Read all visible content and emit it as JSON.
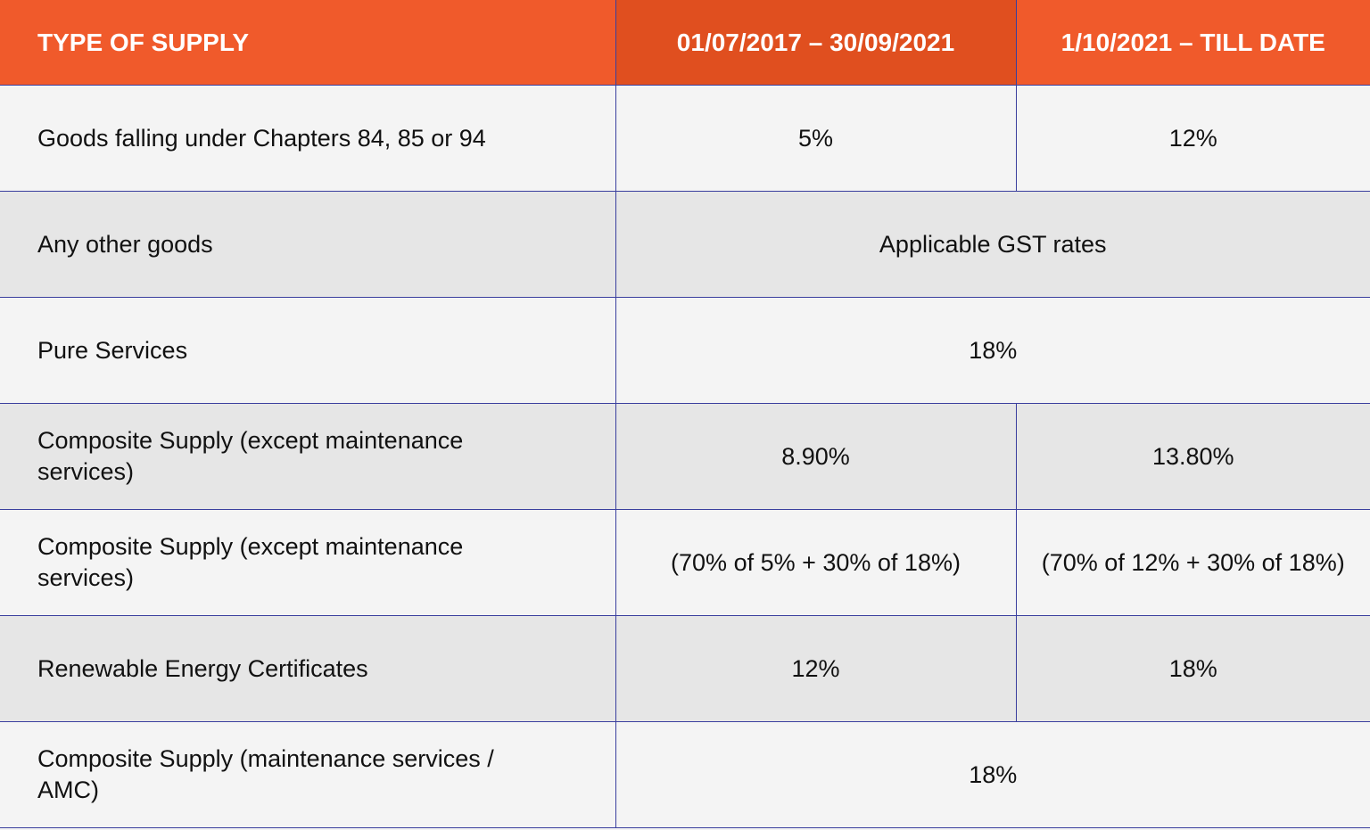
{
  "table": {
    "headers": [
      "TYPE OF SUPPLY",
      "01/07/2017 – 30/09/2021",
      "1/10/2021 – TILL DATE"
    ],
    "colors": {
      "header_bg": "#f05a2b",
      "header_mid_bg": "#e04f1f",
      "row_light": "#f4f4f4",
      "row_dark": "#e6e6e6",
      "border": "#3a3f9e"
    },
    "rows": [
      {
        "type": "Goods falling under Chapters 84, 85 or 94",
        "period1": "5%",
        "period2": "12%"
      },
      {
        "type": "Any other goods",
        "merged": "Applicable GST rates"
      },
      {
        "type": "Pure Services",
        "merged": "18%"
      },
      {
        "type": "Composite Supply (except maintenance services)",
        "period1": "8.90%",
        "period2": "13.80%"
      },
      {
        "type": "Composite Supply (except maintenance services)",
        "period1": "(70% of 5% + 30% of 18%)",
        "period2": "(70% of 12% + 30% of 18%)"
      },
      {
        "type": "Renewable Energy Certificates",
        "period1": "12%",
        "period2": "18%"
      },
      {
        "type": "Composite Supply (maintenance services / AMC)",
        "merged": "18%"
      }
    ]
  }
}
